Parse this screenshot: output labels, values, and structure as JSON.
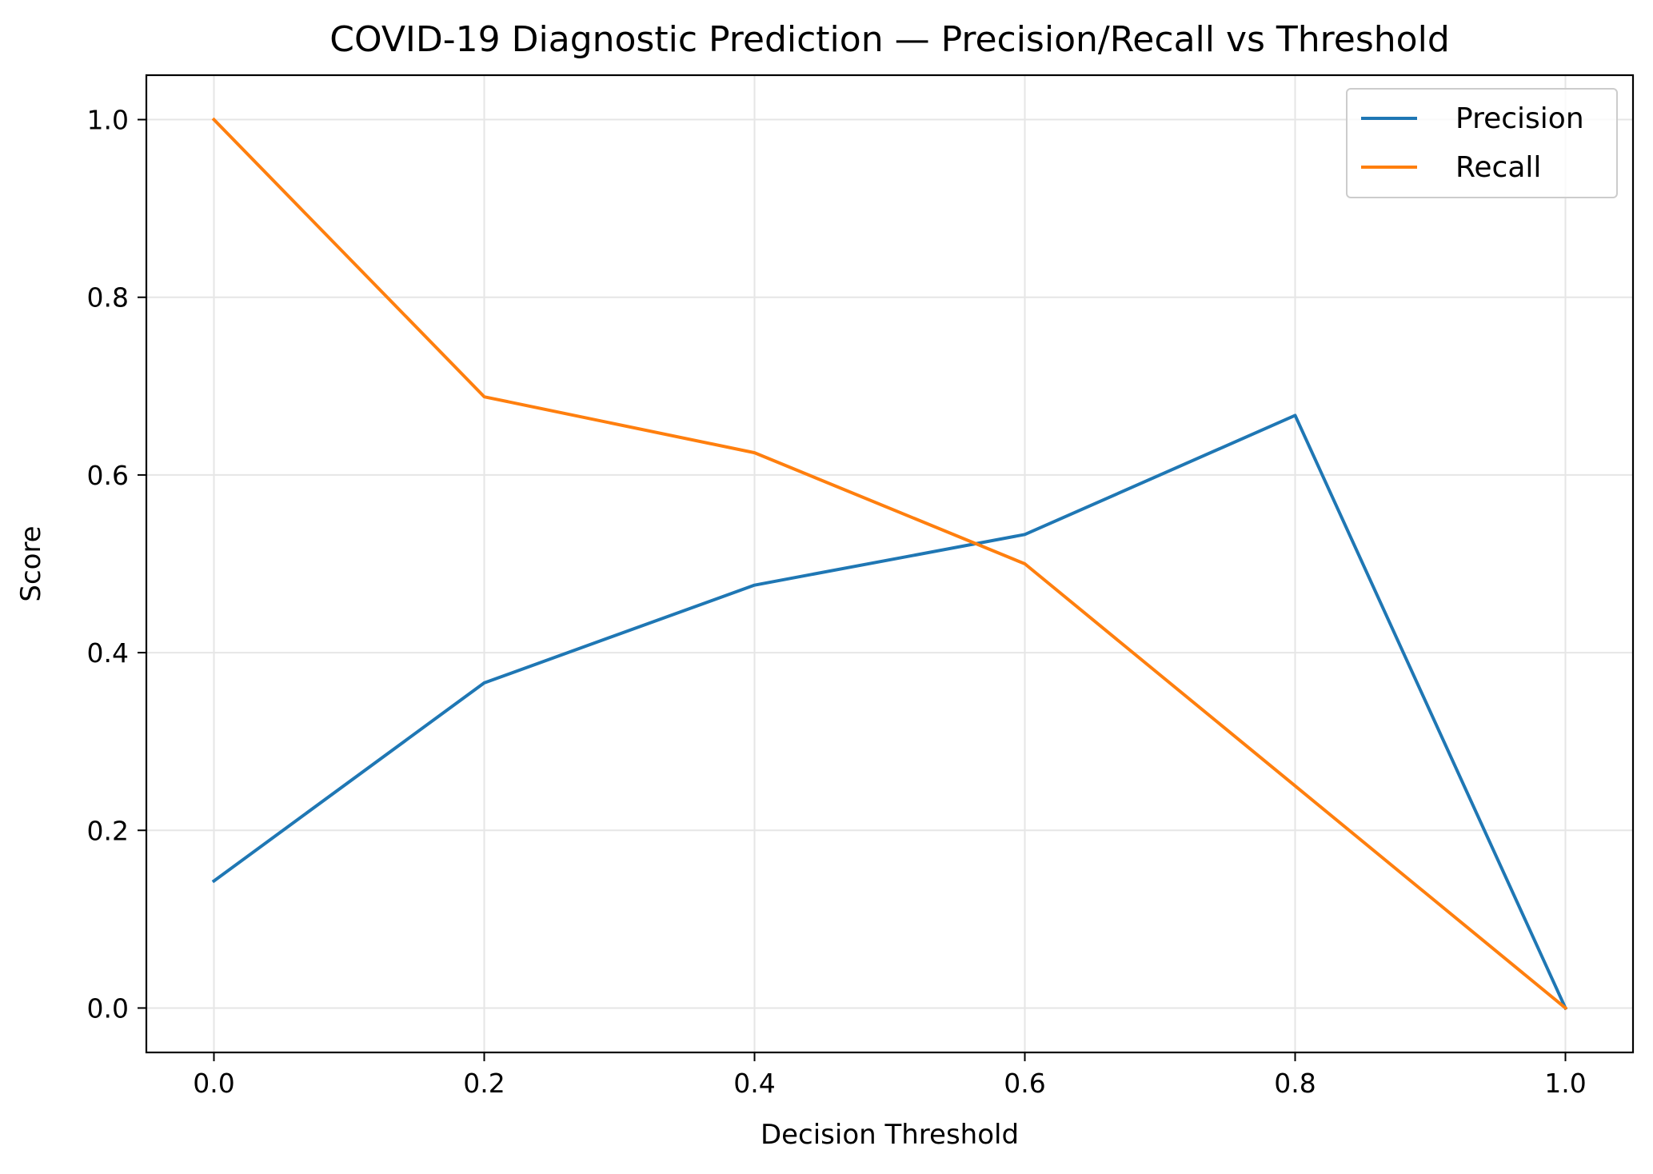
{
  "chart_data": {
    "type": "line",
    "title": "COVID-19 Diagnostic Prediction — Precision/Recall vs Threshold",
    "xlabel": "Decision Threshold",
    "ylabel": "Score",
    "xlim": [
      -0.05,
      1.05
    ],
    "ylim": [
      -0.05,
      1.05
    ],
    "x_ticks": [
      0.0,
      0.2,
      0.4,
      0.6,
      0.8,
      1.0
    ],
    "x_tick_labels": [
      "0.0",
      "0.2",
      "0.4",
      "0.6",
      "0.8",
      "1.0"
    ],
    "y_ticks": [
      0.0,
      0.2,
      0.4,
      0.6,
      0.8,
      1.0
    ],
    "y_tick_labels": [
      "0.0",
      "0.2",
      "0.4",
      "0.6",
      "0.8",
      "1.0"
    ],
    "grid": true,
    "legend_position": "top-right",
    "x": [
      0.0,
      0.2,
      0.4,
      0.6,
      0.8,
      1.0
    ],
    "series": [
      {
        "name": "Precision",
        "color": "#1f77b4",
        "values": [
          0.143,
          0.366,
          0.476,
          0.533,
          0.667,
          0.0
        ]
      },
      {
        "name": "Recall",
        "color": "#ff7f0e",
        "values": [
          1.0,
          0.688,
          0.625,
          0.5,
          0.25,
          0.0
        ]
      }
    ]
  }
}
